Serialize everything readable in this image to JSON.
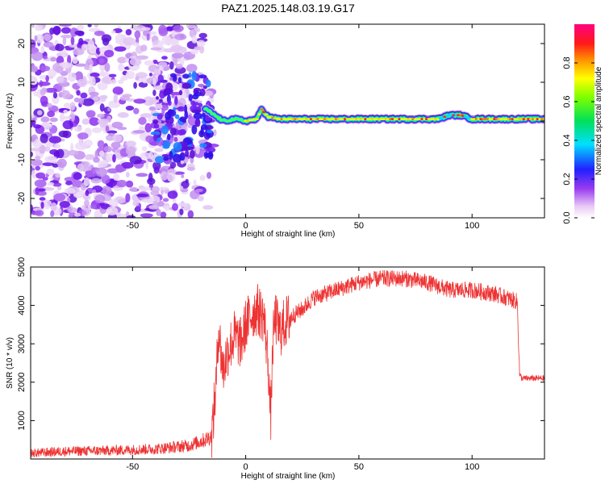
{
  "title": "PAZ1.2025.148.03.19.G17",
  "chart_data": [
    {
      "type": "heatmap",
      "xlabel": "Height of straight line (km)",
      "ylabel": "Frequency (Hz)",
      "xlim": [
        -95,
        132
      ],
      "ylim": [
        -25,
        25
      ],
      "x_ticks": [
        -50,
        0,
        50,
        100
      ],
      "y_ticks": [
        -20,
        -10,
        0,
        10,
        20
      ],
      "colorbar": {
        "label": "Normalized spectral amplitude",
        "range": [
          0,
          1
        ],
        "ticks": [
          0.0,
          0.2,
          0.4,
          0.6,
          0.8
        ],
        "colormap": "rainbow-white-to-magenta"
      },
      "ridge": {
        "description_points_x": [
          -20,
          -15,
          -10,
          -5,
          0,
          5,
          7,
          10,
          15,
          30,
          50,
          70,
          85,
          90,
          95,
          100,
          105,
          110,
          132
        ],
        "description_points_y": [
          4,
          2,
          0,
          0.5,
          0,
          0.5,
          3,
          1,
          0.5,
          0.5,
          0.5,
          0.5,
          0.5,
          1.5,
          1.5,
          0.5,
          0.5,
          0.5,
          0.5
        ]
      },
      "noise_region_x": [
        -95,
        -18
      ]
    },
    {
      "type": "line",
      "xlabel": "Height of straight line (km)",
      "ylabel": "SNR (10 * v/v)",
      "xlim": [
        -95,
        132
      ],
      "ylim": [
        0,
        5000
      ],
      "x_ticks": [
        -50,
        0,
        50,
        100
      ],
      "y_ticks": [
        1000,
        2000,
        3000,
        4000,
        5000
      ],
      "series": [
        {
          "color": "#ee3333",
          "x": [
            -95,
            -80,
            -60,
            -40,
            -25,
            -18,
            -15,
            -13,
            -12,
            -11,
            -10,
            -8,
            -5,
            -2,
            0,
            3,
            5,
            8,
            10,
            11,
            12,
            13,
            15,
            18,
            20,
            25,
            30,
            35,
            40,
            50,
            60,
            70,
            80,
            90,
            100,
            110,
            115,
            120,
            121,
            122,
            125,
            132
          ],
          "y": [
            150,
            200,
            220,
            260,
            350,
            500,
            600,
            2000,
            3500,
            2800,
            2300,
            2800,
            3200,
            3000,
            3500,
            3800,
            3900,
            3700,
            2500,
            1000,
            3000,
            3700,
            3300,
            3600,
            3700,
            3900,
            4200,
            4300,
            4400,
            4600,
            4700,
            4700,
            4600,
            4400,
            4400,
            4300,
            4200,
            4100,
            2200,
            2100,
            2100,
            2100
          ]
        }
      ]
    }
  ]
}
